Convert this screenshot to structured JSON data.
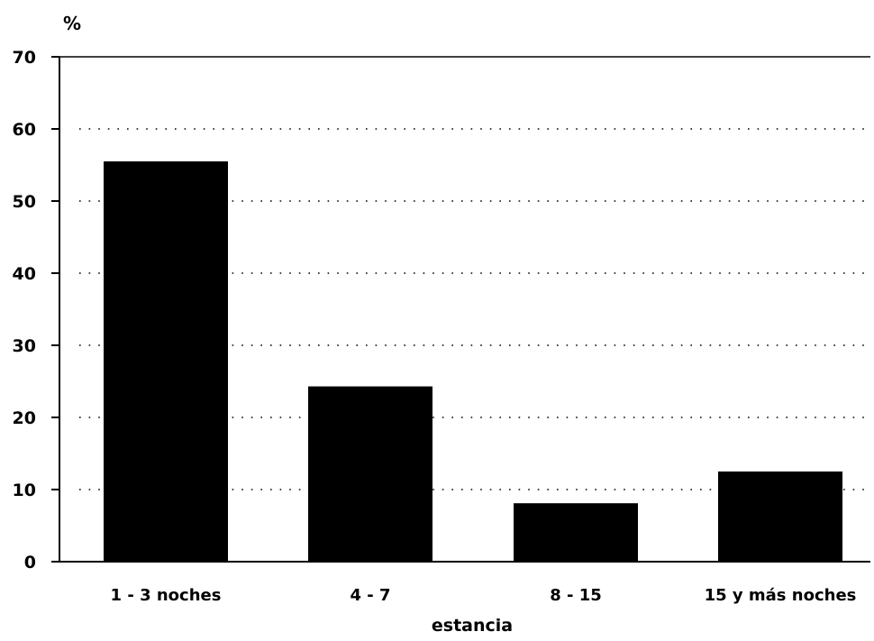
{
  "chart_data": {
    "type": "bar",
    "title": "",
    "ylabel": "%",
    "xlabel": "estancia",
    "categories": [
      "1 - 3 noches",
      "4 - 7",
      "8 - 15",
      "15 y más noches"
    ],
    "values": [
      55.5,
      24.3,
      8.1,
      12.5
    ],
    "ylim": [
      0,
      70
    ],
    "yticks": [
      0,
      10,
      20,
      30,
      40,
      50,
      60,
      70
    ],
    "grid": "horizontal-dotted",
    "legend": "none",
    "colors": {
      "bar": "#000000",
      "axis": "#000000",
      "grid": "#000000",
      "background": "#ffffff"
    }
  }
}
